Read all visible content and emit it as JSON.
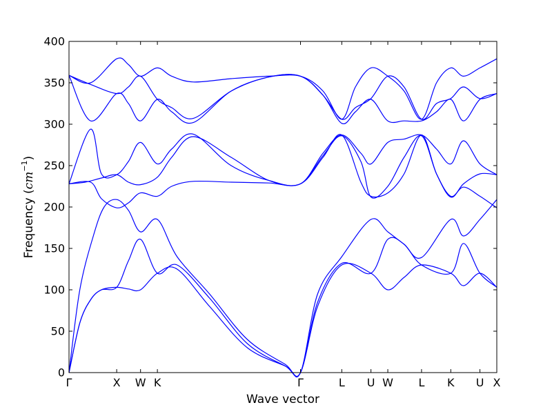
{
  "chart_data": {
    "type": "line",
    "xlabel": "Wave vector",
    "ylabel": "Frequency",
    "ylabel_unit_base": "cm",
    "ylabel_unit_exp": "−1",
    "ylim": [
      0,
      400
    ],
    "y_ticks": [
      0,
      50,
      100,
      150,
      200,
      250,
      300,
      350,
      400
    ],
    "x_tick_labels": [
      "Γ",
      "X",
      "W",
      "K",
      "Γ",
      "L",
      "U",
      "W",
      "L",
      "K",
      "U",
      "X"
    ],
    "x_tick_positions": [
      0,
      0.8824,
      1.3236,
      1.6355,
      4.2832,
      5.0473,
      5.587,
      5.899,
      6.5231,
      7.064,
      7.6035,
      7.9155
    ],
    "xlim": [
      0,
      7.9155
    ],
    "grid": false,
    "line_color": "#0000ff",
    "series": [
      {
        "x": [
          0,
          0.2,
          0.4,
          0.6,
          0.8824,
          1.1,
          1.3236,
          1.6355,
          2.0,
          2.6,
          3.3,
          4.0,
          4.2832,
          4.6,
          5.0473,
          5.587,
          5.899,
          6.2,
          6.5231,
          7.064,
          7.3,
          7.6035,
          7.9155
        ],
        "y": [
          0,
          60,
          88,
          100,
          103,
          101,
          100,
          120,
          125,
          80,
          30,
          8,
          0,
          80,
          130,
          120,
          100,
          115,
          130,
          120,
          105,
          120,
          103
        ]
      },
      {
        "x": [
          0,
          0.2,
          0.4,
          0.6,
          0.8824,
          1.1,
          1.3236,
          1.6355,
          2.0,
          2.6,
          3.3,
          4.0,
          4.2832,
          4.6,
          5.0473,
          5.587,
          5.899,
          6.2,
          6.5231,
          7.064,
          7.3,
          7.6035,
          7.9155
        ],
        "y": [
          0,
          60,
          88,
          100,
          103,
          135,
          161,
          120,
          130,
          90,
          35,
          8,
          0,
          85,
          132,
          120,
          161,
          155,
          130,
          120,
          156,
          120,
          103
        ]
      },
      {
        "x": [
          0,
          0.2,
          0.45,
          0.65,
          0.8824,
          1.1,
          1.3236,
          1.6355,
          2.0,
          2.6,
          3.3,
          4.0,
          4.2832,
          4.6,
          5.0473,
          5.587,
          5.899,
          6.2,
          6.5231,
          7.064,
          7.3,
          7.6035,
          7.9155
        ],
        "y": [
          0,
          100,
          165,
          200,
          209,
          196,
          170,
          185,
          140,
          95,
          40,
          10,
          0,
          95,
          140,
          185,
          170,
          155,
          139,
          185,
          165,
          185,
          209
        ]
      },
      {
        "x": [
          0,
          0.3,
          0.6,
          0.8824,
          1.1,
          1.3236,
          1.6355,
          1.9,
          2.3,
          3.0,
          3.7,
          4.2832,
          4.7,
          5.0473,
          5.4,
          5.587,
          5.899,
          6.2,
          6.5231,
          6.8,
          7.064,
          7.3,
          7.6035,
          7.9155
        ],
        "y": [
          228,
          230,
          235,
          239,
          230,
          227,
          236,
          260,
          285,
          260,
          232,
          228,
          260,
          287,
          230,
          213,
          217,
          240,
          287,
          240,
          213,
          224,
          213,
          199
        ]
      },
      {
        "x": [
          0,
          0.4,
          0.6,
          0.8824,
          1.1,
          1.3236,
          1.6355,
          1.9,
          2.3,
          3.0,
          3.7,
          4.2832,
          4.7,
          5.0473,
          5.4,
          5.587,
          5.899,
          6.2,
          6.5231,
          6.8,
          7.064,
          7.3,
          7.6035,
          7.9155
        ],
        "y": [
          228,
          294,
          240,
          239,
          255,
          278,
          252,
          270,
          288,
          250,
          232,
          228,
          265,
          287,
          265,
          252,
          278,
          282,
          287,
          270,
          252,
          280,
          252,
          239
        ]
      },
      {
        "x": [
          0,
          0.4,
          0.6,
          0.8824,
          1.1,
          1.3236,
          1.6355,
          1.9,
          2.3,
          3.0,
          3.7,
          4.2832,
          4.7,
          5.0473,
          5.4,
          5.587,
          5.899,
          6.2,
          6.5231,
          6.8,
          7.064,
          7.3,
          7.6035,
          7.9155
        ],
        "y": [
          228,
          230,
          210,
          199,
          205,
          217,
          213,
          225,
          231,
          230,
          229,
          228,
          262,
          286,
          255,
          212,
          225,
          260,
          286,
          240,
          212,
          228,
          240,
          239
        ]
      },
      {
        "x": [
          0,
          0.4,
          0.8824,
          1.1,
          1.3236,
          1.6355,
          1.9,
          2.3,
          3.0,
          3.7,
          4.2832,
          4.7,
          5.0473,
          5.3,
          5.587,
          5.899,
          6.2,
          6.5231,
          6.8,
          7.064,
          7.3,
          7.6035,
          7.9155
        ],
        "y": [
          359,
          304,
          337,
          325,
          304,
          330,
          315,
          302,
          340,
          357,
          358,
          335,
          301,
          315,
          330,
          304,
          304,
          304,
          315,
          330,
          304,
          330,
          337
        ]
      },
      {
        "x": [
          0,
          0.4,
          0.8824,
          1.1,
          1.3236,
          1.6355,
          1.9,
          2.3,
          3.0,
          3.7,
          4.2832,
          4.7,
          5.0473,
          5.3,
          5.587,
          5.899,
          6.2,
          6.5231,
          6.8,
          7.064,
          7.3,
          7.6035,
          7.9155
        ],
        "y": [
          359,
          348,
          337,
          345,
          358,
          330,
          320,
          307,
          340,
          357,
          358,
          335,
          306,
          320,
          331,
          358,
          345,
          306,
          325,
          331,
          345,
          331,
          337
        ]
      },
      {
        "x": [
          0,
          0.4,
          0.8824,
          1.1,
          1.3236,
          1.6355,
          1.9,
          2.3,
          3.0,
          3.7,
          4.2832,
          4.7,
          5.0473,
          5.3,
          5.587,
          5.899,
          6.2,
          6.5231,
          6.8,
          7.064,
          7.3,
          7.6035,
          7.9155
        ],
        "y": [
          359,
          350,
          379,
          372,
          358,
          368,
          358,
          351,
          355,
          358,
          358,
          340,
          306,
          345,
          368,
          358,
          340,
          306,
          350,
          368,
          358,
          368,
          379
        ]
      }
    ]
  }
}
